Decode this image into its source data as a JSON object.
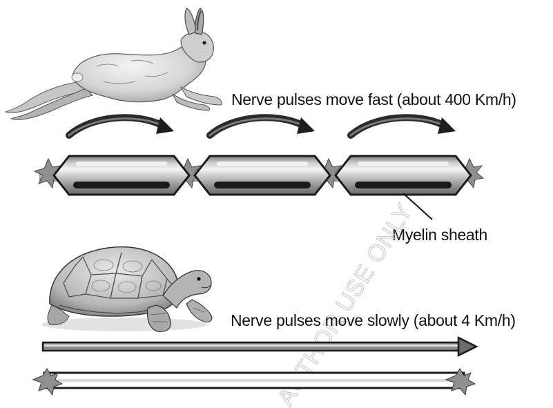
{
  "fast_label": "Nerve pulses move fast (about 400 Km/h)",
  "slow_label": "Nerve pulses move slowly (about 4 Km/h)",
  "myelin_label": "Myelin sheath",
  "watermark": "AUTHOR USE ONLY",
  "icons": {
    "fast_animal": "hare-icon",
    "slow_animal": "tortoise-icon"
  },
  "colors": {
    "ink": "#111111",
    "sheath_mid": "#8a8a8a",
    "sheath_light": "#f2f2f2",
    "node": "#8f8f8f",
    "watermark": "#c9c9c9"
  }
}
